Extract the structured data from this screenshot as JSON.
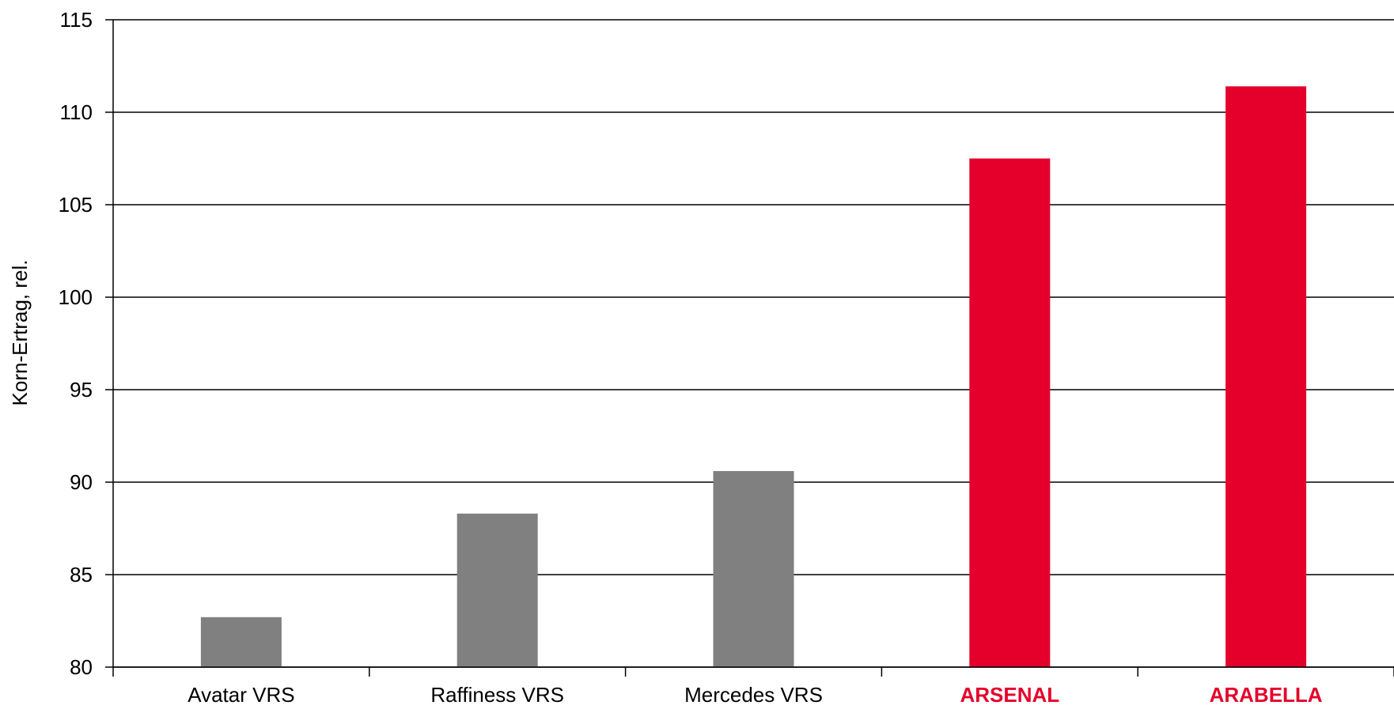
{
  "chart_data": {
    "type": "bar",
    "title": "",
    "xlabel": "",
    "ylabel": "Korn-Ertrag, rel.",
    "ylim": [
      80,
      115
    ],
    "yticks": [
      80,
      85,
      90,
      95,
      100,
      105,
      110,
      115
    ],
    "grid": true,
    "legend": false,
    "categories": [
      "Avatar VRS",
      "Raffiness VRS",
      "Mercedes VRS",
      "ARSENAL",
      "ARABELLA"
    ],
    "values": [
      82.7,
      88.3,
      90.6,
      107.5,
      111.4
    ],
    "bar_colors": [
      "#808080",
      "#808080",
      "#808080",
      "#e4002b",
      "#e4002b"
    ],
    "label_colors": [
      "#000000",
      "#000000",
      "#000000",
      "#e4002b",
      "#e4002b"
    ],
    "label_bold": [
      false,
      false,
      false,
      true,
      true
    ]
  }
}
